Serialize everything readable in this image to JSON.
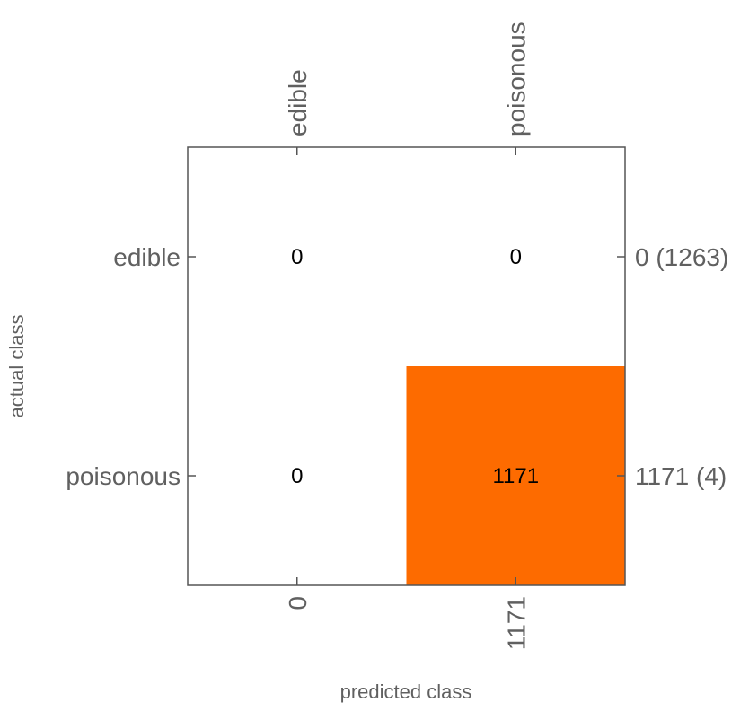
{
  "chart_data": {
    "type": "heatmap",
    "row_categories": [
      "edible",
      "poisonous"
    ],
    "col_categories": [
      "edible",
      "poisonous"
    ],
    "values": [
      [
        0,
        0
      ],
      [
        0,
        1171
      ]
    ],
    "row_totals": [
      "0 (1263)",
      "1171 (4)"
    ],
    "col_totals": [
      "0",
      "1171"
    ],
    "xlabel": "predicted class",
    "ylabel": "actual class",
    "fill_color": "#fd6b00",
    "frame_color": "#555555",
    "text_color": "#606060"
  }
}
